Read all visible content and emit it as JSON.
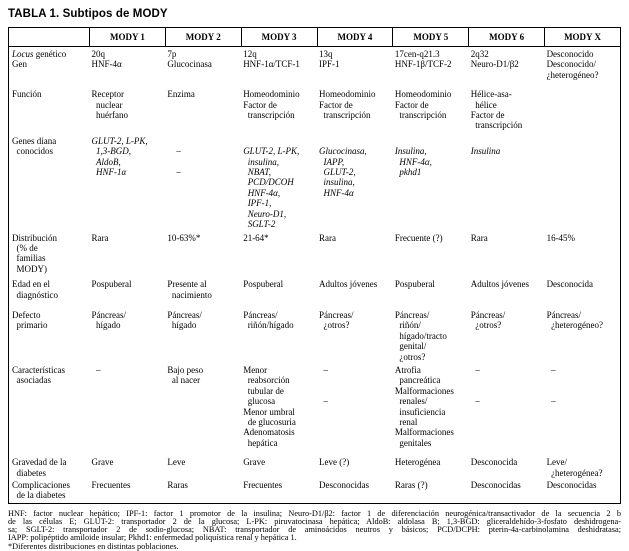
{
  "title": "TABLA 1. Subtipos de MODY",
  "table": {
    "columns": [
      "",
      "MODY 1",
      "MODY 2",
      "MODY 3",
      "MODY 4",
      "MODY 5",
      "MODY 6",
      "MODY X"
    ],
    "rows": [
      {
        "label": "Locus genético\nGen",
        "label_italic_prefix": "Locus",
        "values": [
          "20q\nHNF-4α",
          "7p\nGlucocinasa",
          "12q\nHNF-1α/TCF-1",
          "13q\nIPF-1",
          "17cen-q21.3\nHNF-1β/TCF-2",
          "2q32\nNeuro-D1/β2",
          "Desconocido\nDesconocido/\n¿heterogéneo?"
        ]
      },
      {
        "label": "Función",
        "values": [
          "Receptor\n  nuclear\n  huérfano",
          "Enzima",
          "Homeodominio\nFactor de\n  transcripción",
          "Homeodominio\nFactor de\n  transcripción",
          "Homeodominio\nFactor de\n  transcripción",
          "Hélice-asa-\n  hélice\nFactor de\n  transcripción",
          ""
        ]
      },
      {
        "label": "Genes diana\n  conocidos",
        "italic": true,
        "values": [
          "GLUT-2, L-PK,\n  1,3-BGD,\n  AldoB,\n  HNF-1α",
          "\n    –\n\n    –",
          "\nGLUT-2, L-PK,\n  insulina,\n  NBAT,\n  PCD/DCOH\n  HNF-4α,\n  IPF-1,\n  Neuro-D1,\n  SGLT-2",
          "\nGlucocinasa,\n  IAPP,\n  GLUT-2,\n  insulina,\n  HNF-4α",
          "\nInsulina,\n  HNF-4α,\n  pkhd1",
          "\nInsulina",
          ""
        ]
      },
      {
        "label": "Distribución\n  (% de\n  familias\n  MODY)",
        "values": [
          "Rara",
          "10-63%*",
          "21-64*",
          "Rara",
          "Frecuente (?)",
          "Rara",
          "16-45%"
        ]
      },
      {
        "label": "Edad en el\n  diagnóstico",
        "values": [
          "Pospuberal",
          "Presente al\n  nacimiento",
          "Pospuberal",
          "Adultos jóvenes",
          "Pospuberal",
          "Adultos jóvenes",
          "Desconocida"
        ]
      },
      {
        "label": "Defecto\n  primario",
        "values": [
          "Páncreas/\n  hígado",
          "Páncreas/\n  hígado",
          "Páncreas/\n  riñón/hígado",
          "Páncreas/\n  ¿otros?",
          "Páncreas/\n  riñón/\n  hígado/tracto\n  genital/\n  ¿otros?",
          "Páncreas/\n  ¿otros?",
          "Páncreas/\n  ¿heterogéneo?"
        ]
      },
      {
        "label": "Características\n  asociadas",
        "values": [
          "  –",
          "Bajo peso\n  al nacer",
          "Menor\n  reabsorción\n  tubular de\n  glucosa\nMenor umbral\n  de glucosuria\nAdenomatosis\n  hepática",
          "  –\n\n\n  –",
          "Atrofia\n  pancreática\nMalformaciones\n  renales/\n  insuficiencia\n  renal\nMalformaciones\n  genitales",
          "  –\n\n\n  –",
          "  –\n\n\n  –"
        ]
      },
      {
        "label": "Gravedad de la\n  diabetes",
        "values": [
          "Grave",
          "Leve",
          "Grave",
          "Leve (?)",
          "Heterogénea",
          "Desconocida",
          "Leve/\n  ¿heterogénea?"
        ]
      },
      {
        "label": "Complicaciones\n  de la diabetes",
        "values": [
          "Frecuentes",
          "Raras",
          "Frecuentes",
          "Desconocidas",
          "Raras (?)",
          "Desconocidas",
          "Desconocidas"
        ]
      }
    ]
  },
  "footnotes": [
    "HNF: factor nuclear hepático; IPF-1: factor 1 promotor de la insulina; Neuro-D1/β2: factor 1 de diferenciación neurogénica/transactivador de la secuencia 2 b",
    "de las células E; GLUT-2: transportador 2 de la glucosa; L-PK: piruvatocinasa hepática; AldoB: aldolasa B; 1,3-BGD: gliceraldehído-3-fosfato deshidrogena-",
    "sa; SGLT-2: transportador 2 de sodio-glucosa; NBAT: transportador de aminoácidos neutros y básicos; PCD/DCPH: pterin-4a-carbinolamina deshidratasa;",
    "IAPP: polipéptido amiloide insular; Pkhd1: enfermedad poliquística renal y hepática 1.",
    "*Diferentes distribuciones en distintas poblaciones."
  ]
}
